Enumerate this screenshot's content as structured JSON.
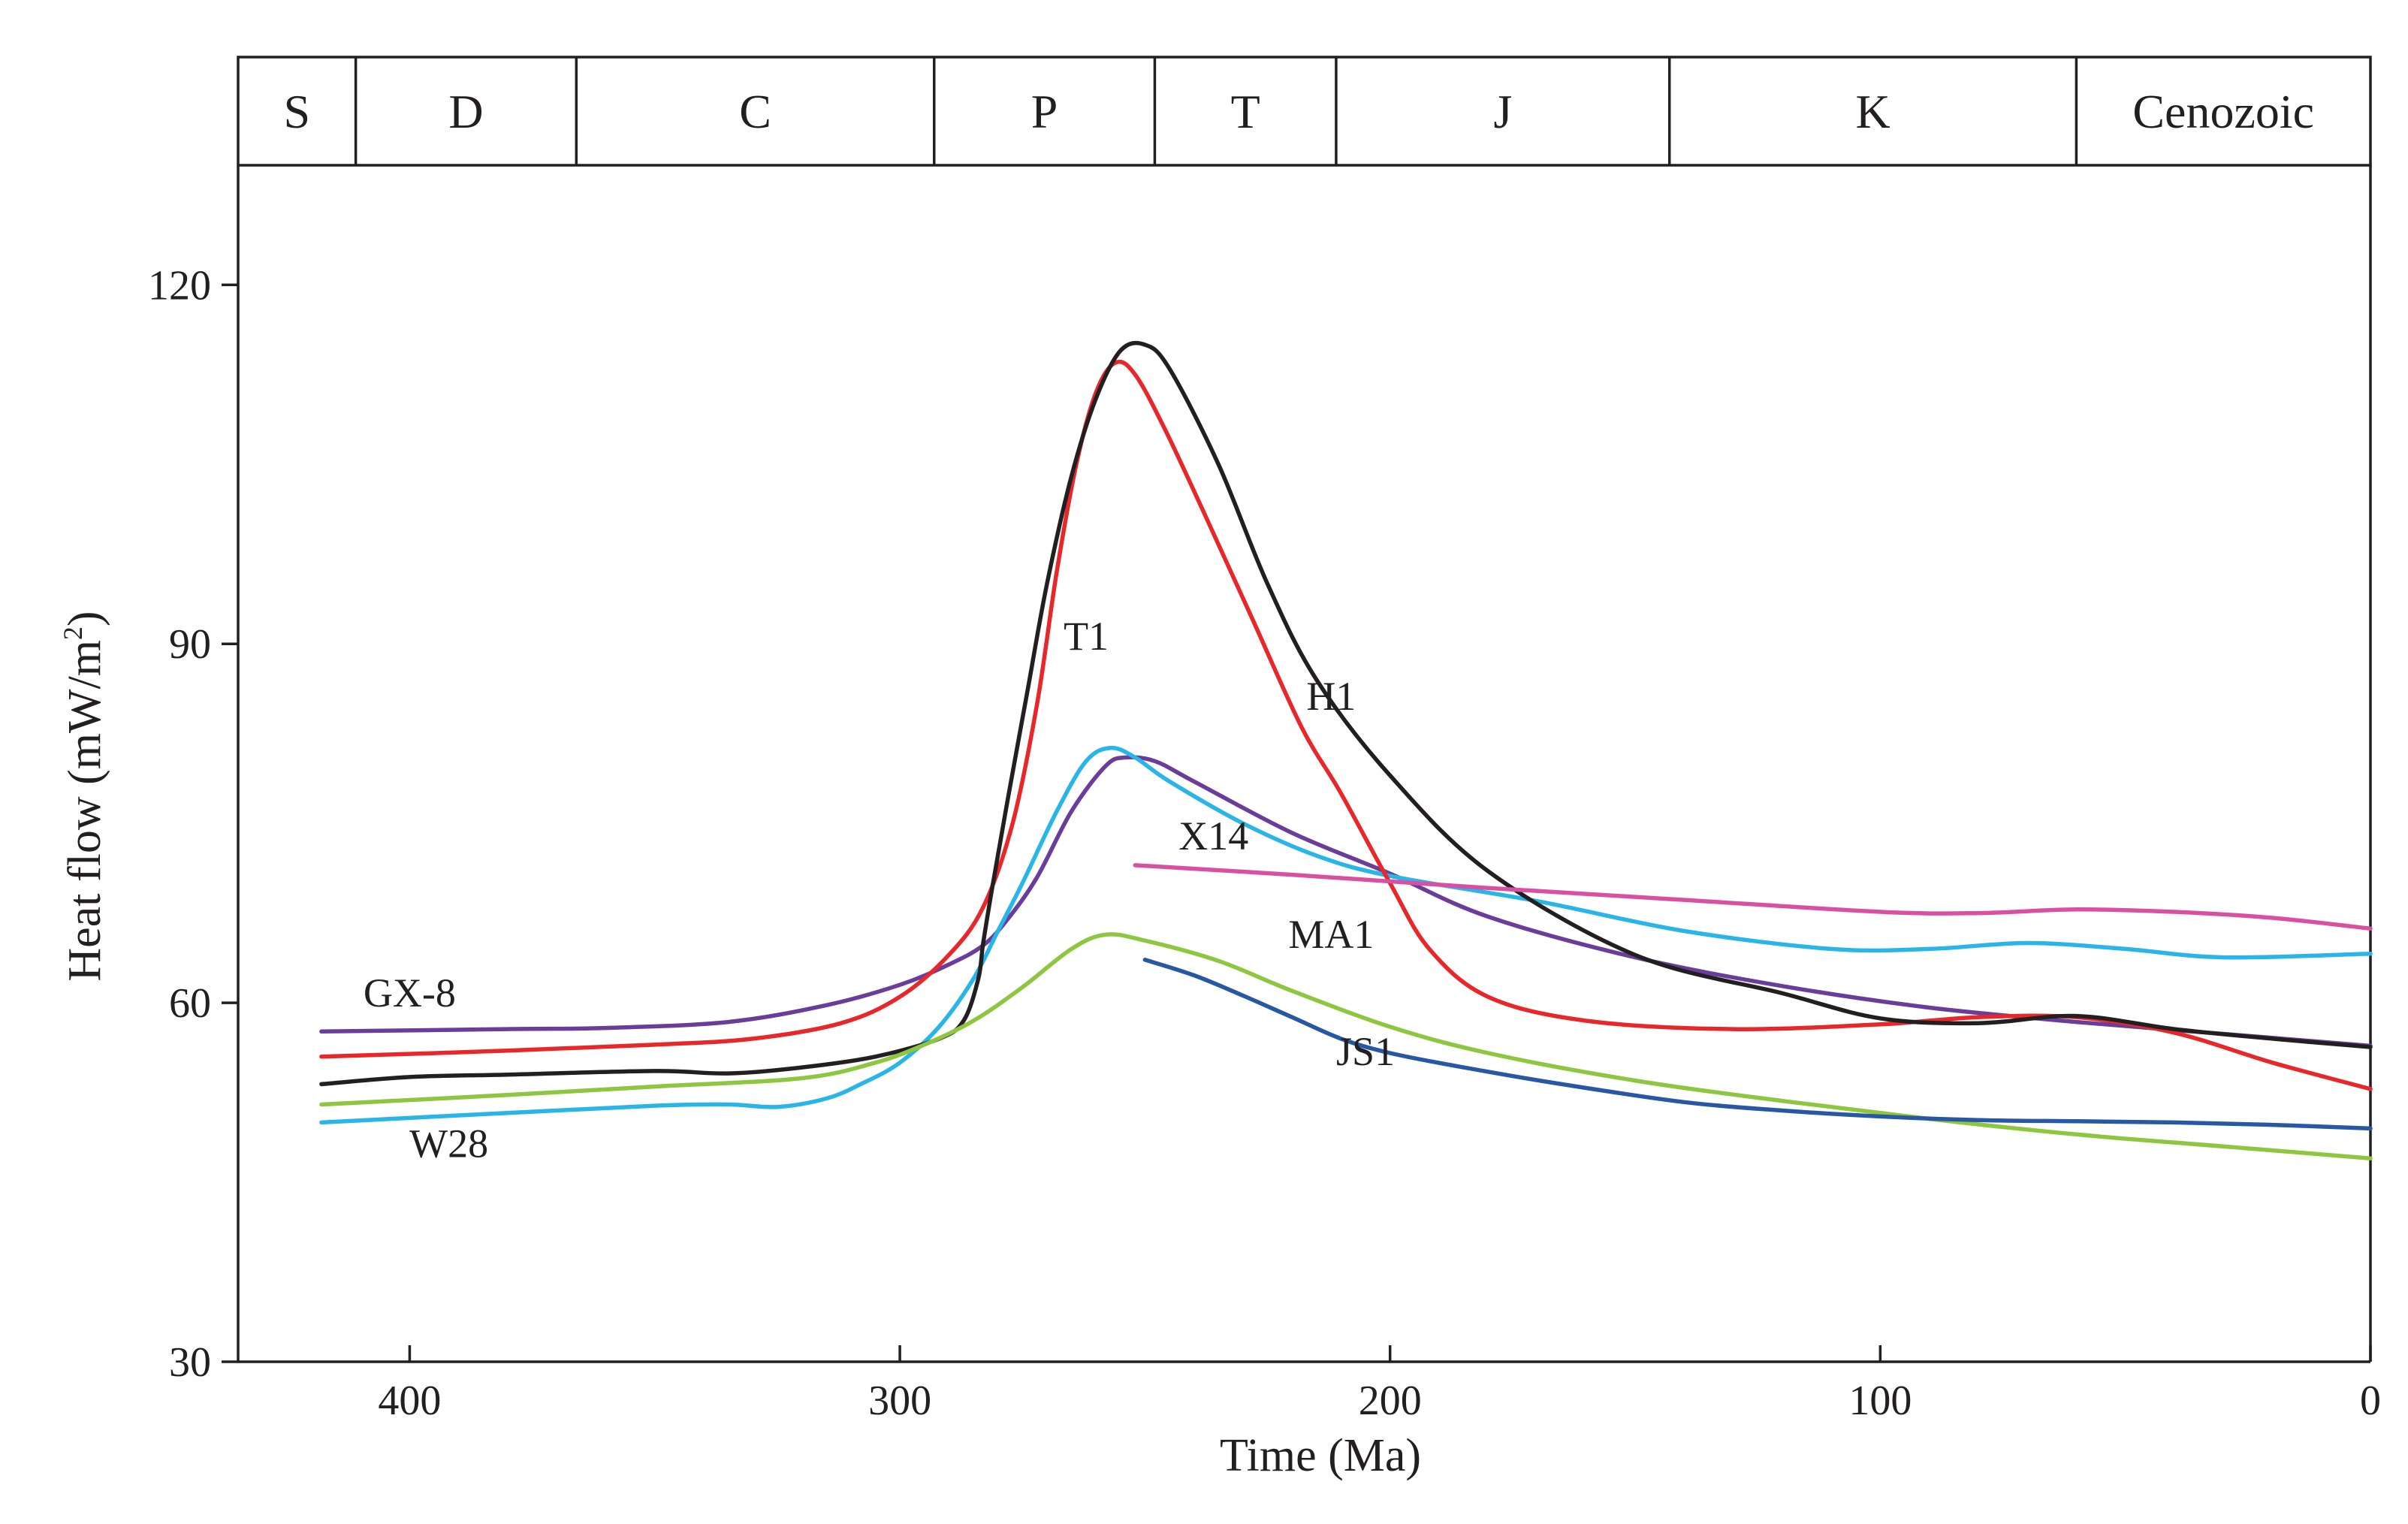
{
  "chart_data": {
    "type": "line",
    "title": "",
    "xlabel": "Time (Ma)",
    "ylabel_main": "Heat flow (mW/m",
    "ylabel_sup": "2",
    "ylabel_close": ")",
    "xlim": [
      435,
      0
    ],
    "ylim": [
      30,
      130
    ],
    "x_ticks": [
      400,
      300,
      200,
      100,
      0
    ],
    "y_ticks": [
      30,
      60,
      90,
      120
    ],
    "x_tick_labels": [
      "400",
      "300",
      "200",
      "100",
      "0"
    ],
    "y_tick_labels": [
      "30",
      "60",
      "90",
      "120"
    ],
    "grid": false,
    "legend": "none",
    "periods": [
      {
        "name": "S",
        "start": 435,
        "end": 411
      },
      {
        "name": "D",
        "start": 411,
        "end": 366
      },
      {
        "name": "C",
        "start": 366,
        "end": 293
      },
      {
        "name": "P",
        "start": 293,
        "end": 248
      },
      {
        "name": "T",
        "start": 248,
        "end": 211
      },
      {
        "name": "J",
        "start": 211,
        "end": 143
      },
      {
        "name": "K",
        "start": 143,
        "end": 60
      },
      {
        "name": "Cenozoic",
        "start": 60,
        "end": 0
      }
    ],
    "series": [
      {
        "name": "GX-8",
        "color": "#6a3d9a",
        "label_at": [
          400,
          59.7
        ],
        "x": [
          418,
          380,
          360,
          335,
          315,
          300,
          290,
          283,
          278,
          272,
          265,
          258,
          254,
          248,
          240,
          220,
          200,
          180,
          150,
          120,
          90,
          60,
          30,
          0
        ],
        "y": [
          57.6,
          57.8,
          57.9,
          58.4,
          59.8,
          61.5,
          63.2,
          64.8,
          67.0,
          70.5,
          76.0,
          79.8,
          80.5,
          80.2,
          78.5,
          74.2,
          70.8,
          67.2,
          63.8,
          61.4,
          59.6,
          58.4,
          57.4,
          56.4
        ]
      },
      {
        "name": "W28",
        "color": "#29b5e8",
        "label_at": [
          392,
          47.1
        ],
        "x": [
          418,
          380,
          350,
          335,
          325,
          315,
          308,
          300,
          292,
          285,
          280,
          275,
          268,
          262,
          257,
          252,
          245,
          230,
          215,
          200,
          170,
          140,
          110,
          90,
          70,
          50,
          30,
          0
        ],
        "y": [
          50.0,
          50.8,
          51.4,
          51.5,
          51.3,
          52.0,
          53.2,
          55.0,
          58.0,
          62.0,
          66.0,
          70.0,
          76.0,
          80.2,
          81.3,
          80.5,
          78.5,
          75.0,
          72.3,
          70.6,
          68.5,
          66.0,
          64.5,
          64.5,
          65.0,
          64.5,
          63.8,
          64.1
        ]
      },
      {
        "name": "T1",
        "color": "#e8272a",
        "label_at": [
          262,
          89.5
        ],
        "x": [
          418,
          380,
          350,
          330,
          312,
          300,
          290,
          283,
          277,
          272,
          268,
          264,
          260,
          256,
          252,
          246,
          238,
          228,
          218,
          210,
          200,
          192,
          180,
          160,
          130,
          100,
          80,
          60,
          40,
          20,
          0
        ],
        "y": [
          55.5,
          56.0,
          56.5,
          57.0,
          58.3,
          60.5,
          64.0,
          68.0,
          75.0,
          85.0,
          96.0,
          105.0,
          111.0,
          113.5,
          112.5,
          108.0,
          101.0,
          92.0,
          83.0,
          77.5,
          70.0,
          64.5,
          60.5,
          58.5,
          57.8,
          58.2,
          58.8,
          58.8,
          57.5,
          55.0,
          52.8
        ]
      },
      {
        "name": "H1",
        "color": "#231f20",
        "label_at": [
          212,
          84.5
        ],
        "x": [
          418,
          400,
          380,
          350,
          335,
          320,
          305,
          292,
          287,
          284,
          283,
          281,
          278,
          274,
          270,
          265,
          260,
          255,
          250,
          245,
          235,
          225,
          215,
          200,
          180,
          150,
          120,
          100,
          80,
          60,
          40,
          20,
          0
        ],
        "y": [
          53.2,
          53.8,
          54.0,
          54.3,
          54.1,
          54.6,
          55.5,
          57.0,
          58.5,
          62.0,
          65.0,
          70.0,
          77.0,
          86.0,
          95.0,
          104.0,
          110.5,
          114.5,
          115.0,
          113.0,
          105.0,
          95.0,
          87.0,
          79.0,
          71.0,
          64.0,
          60.8,
          58.7,
          58.3,
          58.9,
          57.8,
          57.0,
          56.3
        ]
      },
      {
        "name": "X14",
        "color": "#d94fa2",
        "label_at": [
          236,
          72.8
        ],
        "x": [
          252,
          220,
          180,
          140,
          100,
          80,
          60,
          40,
          20,
          0
        ],
        "y": [
          71.5,
          70.7,
          69.6,
          68.6,
          67.6,
          67.5,
          67.8,
          67.6,
          67.1,
          66.2
        ]
      },
      {
        "name": "MA1",
        "color": "#8dc63f",
        "label_at": [
          212,
          64.6
        ],
        "x": [
          418,
          380,
          350,
          320,
          305,
          295,
          285,
          275,
          265,
          258,
          250,
          235,
          220,
          200,
          180,
          150,
          120,
          90,
          60,
          30,
          0
        ],
        "y": [
          51.5,
          52.3,
          53.0,
          53.7,
          55.0,
          56.5,
          58.5,
          61.3,
          64.5,
          65.7,
          65.2,
          63.5,
          61.0,
          58.0,
          55.8,
          53.5,
          51.8,
          50.3,
          49.0,
          48.0,
          47.0
        ]
      },
      {
        "name": "JS1",
        "color": "#2857a4",
        "label_at": [
          205,
          54.8
        ],
        "x": [
          250,
          240,
          230,
          220,
          210,
          200,
          185,
          165,
          140,
          120,
          100,
          80,
          60,
          40,
          20,
          0
        ],
        "y": [
          63.6,
          62.3,
          60.6,
          58.8,
          57.0,
          55.8,
          54.6,
          53.2,
          51.7,
          51.0,
          50.5,
          50.2,
          50.1,
          50.0,
          49.8,
          49.5
        ]
      }
    ]
  }
}
